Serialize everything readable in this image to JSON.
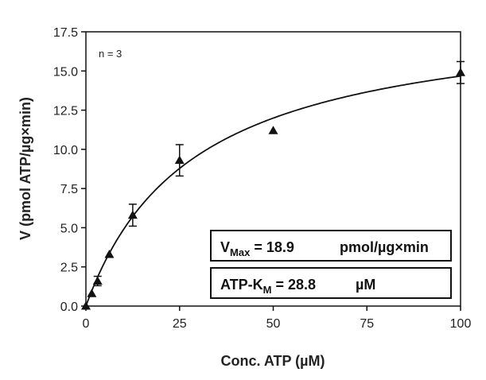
{
  "chart_data": {
    "type": "scatter",
    "title": "",
    "xlabel": "Conc. ATP (µM)",
    "ylabel": "V (pmol ATP/µg×min)",
    "xlim": [
      0,
      100
    ],
    "ylim": [
      0,
      17.5
    ],
    "x_ticks": [
      0,
      25,
      50,
      75,
      100
    ],
    "y_ticks": [
      0.0,
      2.5,
      5.0,
      7.5,
      10.0,
      12.5,
      15.0,
      17.5
    ],
    "x_tick_labels": [
      "0",
      "25",
      "50",
      "75",
      "100"
    ],
    "y_tick_labels": [
      "0.0",
      "2.5",
      "5.0",
      "7.5",
      "10.0",
      "12.5",
      "15.0",
      "17.5"
    ],
    "grid": false,
    "annotation": "n = 3",
    "series": [
      {
        "marker": "triangle",
        "points": [
          {
            "x": 0,
            "y": 0.0,
            "err": 0
          },
          {
            "x": 1.56,
            "y": 0.8,
            "err": 0
          },
          {
            "x": 3.125,
            "y": 1.6,
            "err": 0.3
          },
          {
            "x": 6.25,
            "y": 3.3,
            "err": 0
          },
          {
            "x": 12.5,
            "y": 5.8,
            "err": 0.7
          },
          {
            "x": 25,
            "y": 9.3,
            "err": 1.0
          },
          {
            "x": 50,
            "y": 11.2,
            "err": 0
          },
          {
            "x": 100,
            "y": 14.9,
            "err": 0.7
          }
        ]
      }
    ],
    "fit": {
      "model": "michaelis-menten",
      "vmax": 18.9,
      "km": 28.8
    },
    "legend_boxes": {
      "vmax": {
        "label": "V",
        "sub": "Max",
        "eq": " = 18.9",
        "unit": "pmol/µg×min"
      },
      "km": {
        "label": "ATP-K",
        "sub": "M",
        "eq": " = 28.8",
        "unit": "µM"
      }
    }
  }
}
